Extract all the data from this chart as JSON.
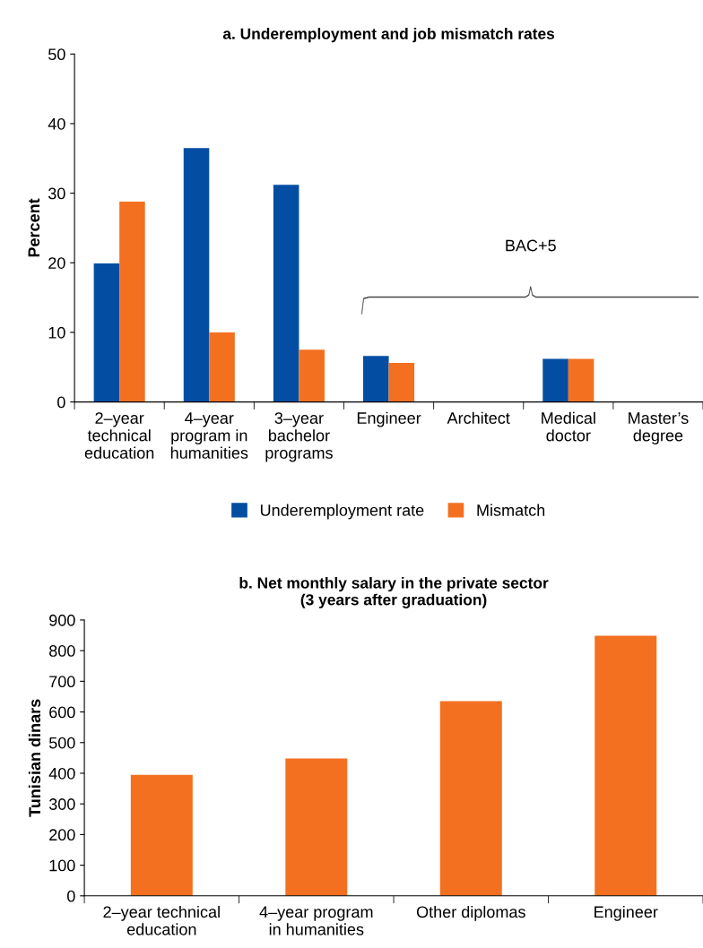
{
  "chart_data": [
    {
      "type": "bar",
      "title": "a. Underemployment and job mismatch rates",
      "ylabel": "Percent",
      "categories": [
        "2–year\ntechnical\neducation",
        "4–year\nprogram in\nhumanities",
        "3–year\nbachelor\nprograms",
        "Engineer",
        "Architect",
        "Medical\ndoctor",
        "Master’s\ndegree"
      ],
      "series": [
        {
          "name": "Underemployment rate",
          "color": "#034ea2",
          "values": [
            19.9,
            36.5,
            31.2,
            6.6,
            null,
            6.2,
            null
          ]
        },
        {
          "name": "Mismatch",
          "color": "#f37021",
          "values": [
            28.8,
            10.0,
            7.5,
            5.6,
            null,
            6.2,
            null
          ]
        }
      ],
      "ylim": [
        0,
        50
      ],
      "yticks": [
        0,
        10,
        20,
        30,
        40,
        50
      ],
      "grid": false,
      "legend": "bottom",
      "annotations": [
        "BAC+5"
      ]
    },
    {
      "type": "bar",
      "title": "b. Net monthly salary in the private sector\n(3 years after graduation)",
      "ylabel": "Tunisian dinars",
      "categories": [
        "2–year technical\neducation",
        "4–year program\nin humanities",
        "Other diplomas",
        "Engineer"
      ],
      "series": [
        {
          "color": "#f37021",
          "values": [
            395,
            448,
            635,
            849
          ]
        }
      ],
      "ylim": [
        0,
        900
      ],
      "yticks": [
        0,
        100,
        200,
        300,
        400,
        500,
        600,
        700,
        800,
        900
      ],
      "grid": false,
      "legend": false
    }
  ]
}
